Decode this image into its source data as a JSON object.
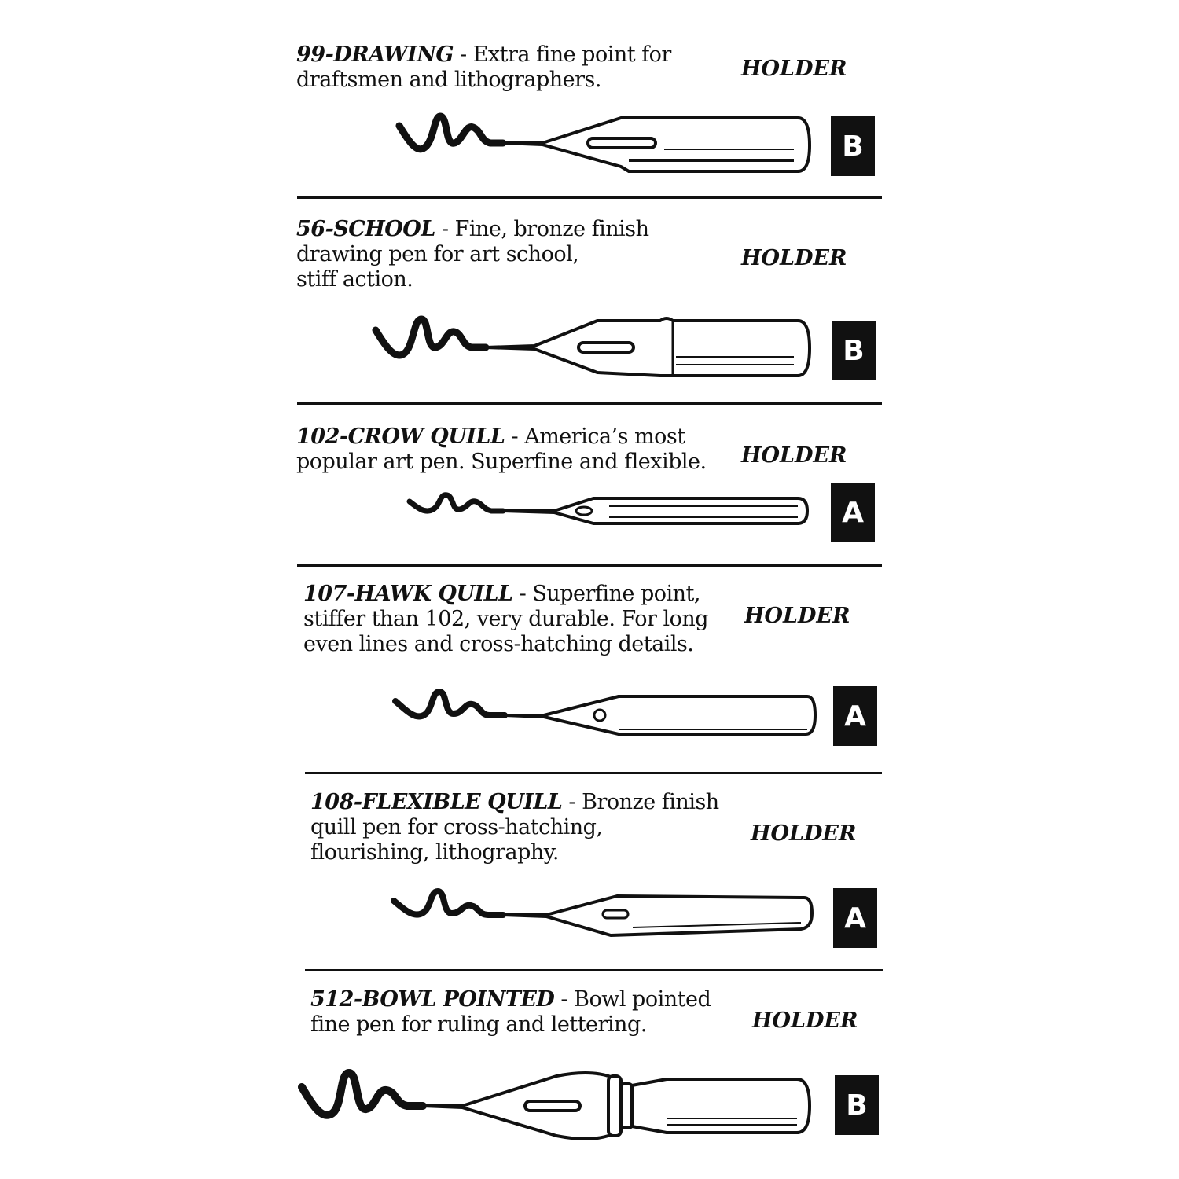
{
  "entries": [
    {
      "name": "99-DRAWING",
      "text": " - Extra fine point  for\ndraftsmen and lithographers.",
      "holder_label": "HOLDER",
      "holder": "B"
    },
    {
      "name": "56-SCHOOL",
      "text": " - Fine, bronze finish\ndrawing pen for art school,\nstiff action.",
      "holder_label": "HOLDER",
      "holder": "B"
    },
    {
      "name": "102-CROW QUILL",
      "text": " - America’s most\npopular art pen. Superfine and flexible.",
      "holder_label": "HOLDER",
      "holder": "A"
    },
    {
      "name": "107-HAWK QUILL",
      "text": " - Superfine point,\nstiffer than 102, very durable. For long\neven lines and cross-hatching details.",
      "holder_label": "HOLDER",
      "holder": "A"
    },
    {
      "name": "108-FLEXIBLE QUILL",
      "text": " - Bronze finish\nquill pen for cross-hatching,\nflourishing, lithography.",
      "holder_label": "HOLDER",
      "holder": "A"
    },
    {
      "name": "512-BOWL POINTED",
      "text": " - Bowl pointed\nfine pen for ruling and lettering.",
      "holder_label": "HOLDER",
      "holder": "B"
    }
  ]
}
